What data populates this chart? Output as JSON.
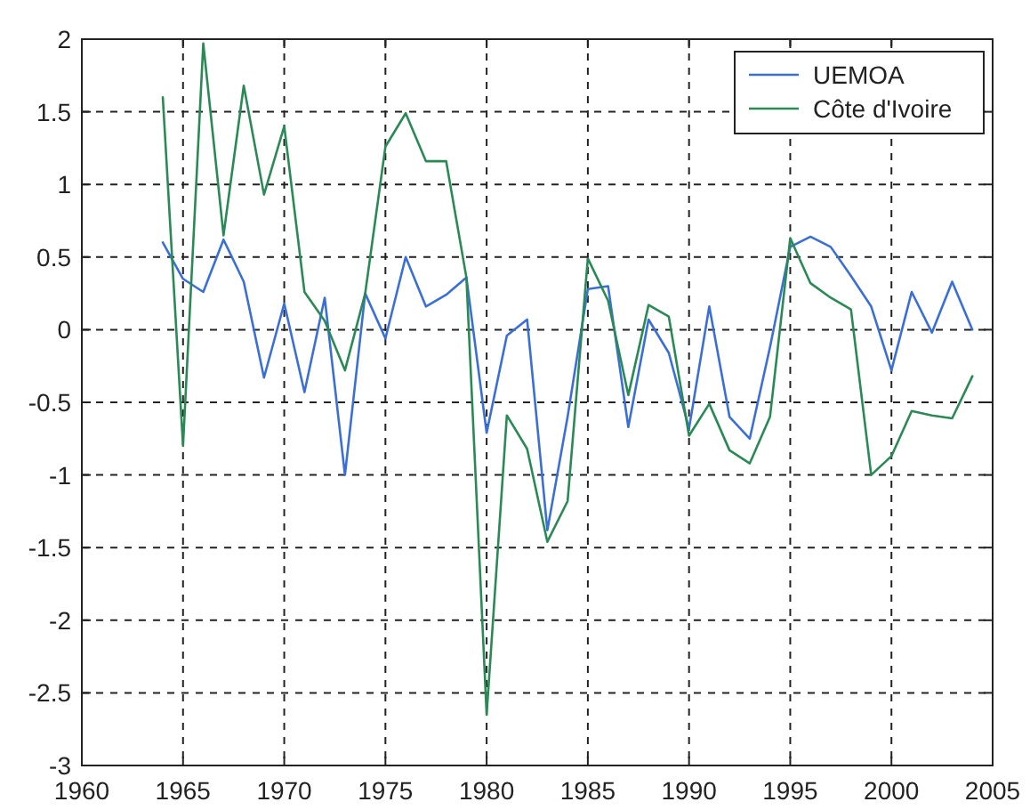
{
  "chart_data": {
    "type": "line",
    "x": [
      1964,
      1965,
      1966,
      1967,
      1968,
      1969,
      1970,
      1971,
      1972,
      1973,
      1974,
      1975,
      1976,
      1977,
      1978,
      1979,
      1980,
      1981,
      1982,
      1983,
      1984,
      1985,
      1986,
      1987,
      1988,
      1989,
      1990,
      1991,
      1992,
      1993,
      1994,
      1995,
      1996,
      1997,
      1998,
      1999,
      2000,
      2001,
      2002,
      2003,
      2004
    ],
    "series": [
      {
        "name": "UEMOA",
        "color": "#3a6fd8",
        "values": [
          0.6,
          0.35,
          0.26,
          0.62,
          0.33,
          -0.33,
          0.18,
          -0.43,
          0.22,
          -1.0,
          0.25,
          -0.06,
          0.5,
          0.16,
          0.24,
          0.36,
          -0.71,
          -0.04,
          0.07,
          -1.38,
          -0.6,
          0.28,
          0.3,
          -0.67,
          0.07,
          -0.16,
          -0.68,
          0.16,
          -0.6,
          -0.75,
          -0.12,
          0.57,
          0.64,
          0.57,
          0.37,
          0.16,
          -0.28,
          0.26,
          -0.02,
          0.33,
          0.0
        ]
      },
      {
        "name": "Côte d'Ivoire",
        "color": "#2a8a55",
        "values": [
          1.6,
          -0.8,
          1.97,
          0.65,
          1.68,
          0.93,
          1.4,
          0.26,
          0.06,
          -0.28,
          0.25,
          1.26,
          1.49,
          1.16,
          1.16,
          0.36,
          -2.65,
          -0.59,
          -0.82,
          -1.46,
          -1.18,
          0.49,
          0.2,
          -0.45,
          0.17,
          0.09,
          -0.73,
          -0.51,
          -0.83,
          -0.92,
          -0.6,
          0.63,
          0.32,
          0.22,
          0.14,
          -1.0,
          -0.87,
          -0.56,
          -0.59,
          -0.61,
          -0.32
        ]
      }
    ],
    "xlim": [
      1960,
      2005
    ],
    "xticks": [
      1960,
      1965,
      1970,
      1975,
      1980,
      1985,
      1990,
      1995,
      2000,
      2005
    ],
    "ylim": [
      -3,
      2
    ],
    "yticks": [
      -3,
      -2.5,
      -2,
      -1.5,
      -1,
      -0.5,
      0,
      0.5,
      1,
      1.5,
      2
    ],
    "grid": true,
    "legend": "top right",
    "line_style": "solid"
  }
}
